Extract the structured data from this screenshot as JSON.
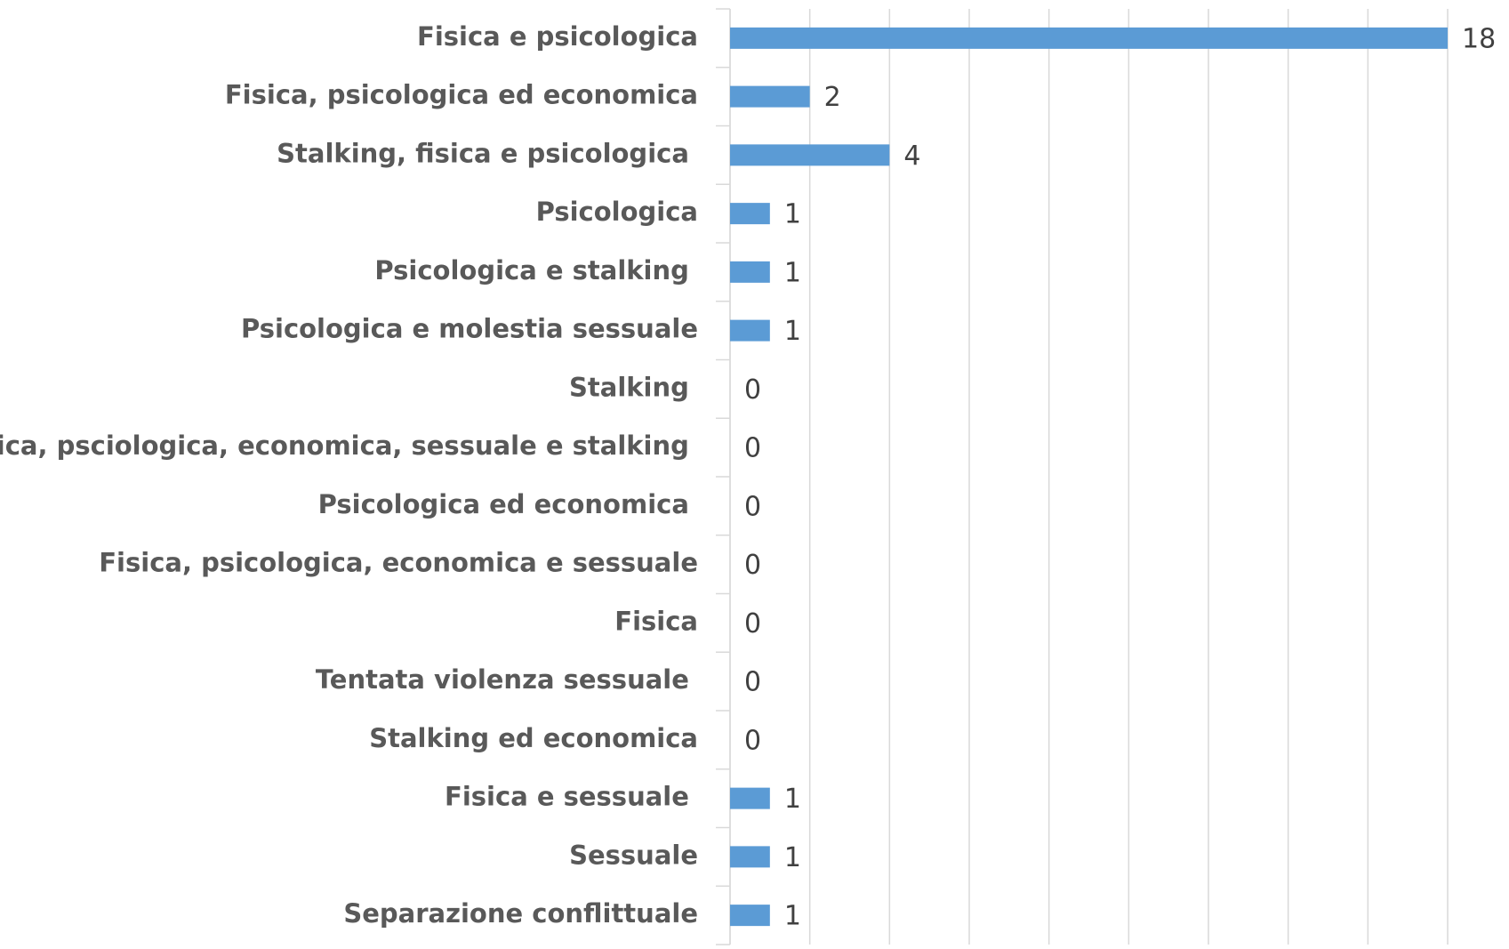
{
  "chart_data": {
    "type": "bar",
    "orientation": "horizontal",
    "categories": [
      "Fisica e psicologica",
      "Fisica, psicologica ed economica",
      "Stalking, fisica e psicologica ",
      "Psicologica",
      "Psicologica e stalking ",
      "Psicologica e molestia sessuale",
      "Stalking ",
      "Fisica, psciologica, economica, sessuale e stalking ",
      "Psicologica ed economica ",
      "Fisica, psicologica, economica e sessuale",
      "Fisica",
      "Tentata violenza sessuale ",
      "Stalking ed economica",
      "Fisica e sessuale ",
      "Sessuale",
      "Separazione conflittuale"
    ],
    "values": [
      18,
      2,
      4,
      1,
      1,
      1,
      0,
      0,
      0,
      0,
      0,
      0,
      0,
      1,
      1,
      1
    ],
    "color": "#5b9bd5",
    "xlim": [
      0,
      18
    ],
    "xticks": [
      0,
      2,
      4,
      6,
      8,
      10,
      12,
      14,
      16,
      18
    ],
    "grid": true
  }
}
